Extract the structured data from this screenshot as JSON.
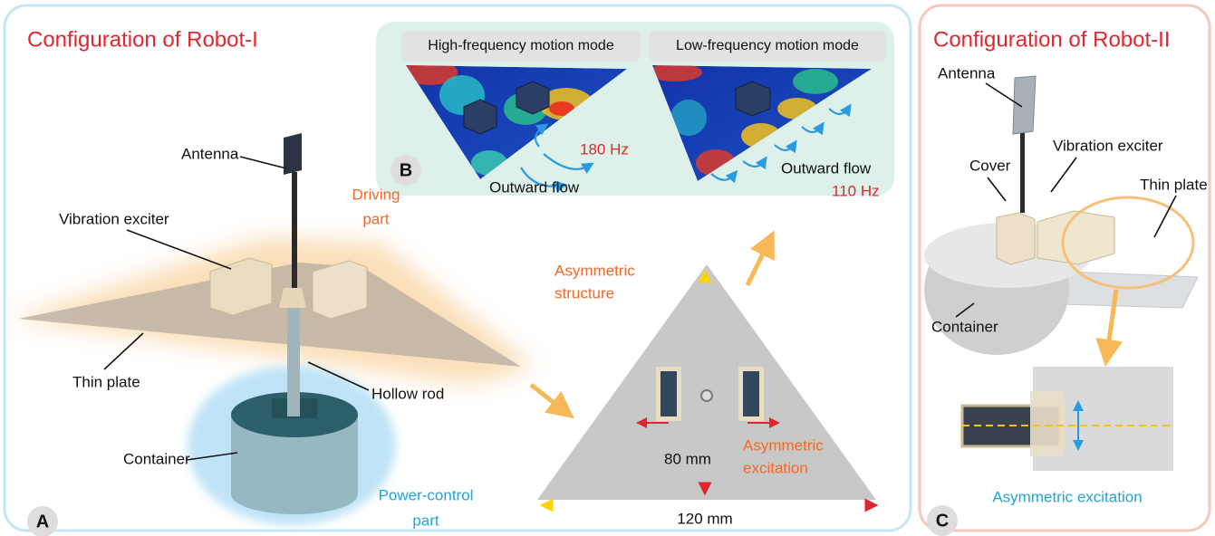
{
  "robot_1": {
    "title": "Configuration of Robot-I",
    "panel_label": "A",
    "antenna": "Antenna",
    "vibration_exciter": "Vibration exciter",
    "driving_part": [
      "Driving",
      "part"
    ],
    "thin_plate": "Thin plate",
    "hollow_rod": "Hollow rod",
    "container": "Container",
    "power_control_part": [
      "Power-control",
      "part"
    ]
  },
  "simulation": {
    "panel_label": "B",
    "high_frequency": {
      "mode": "High-frequency motion mode",
      "frequency": "180 Hz",
      "flow": "Outward flow"
    },
    "low_frequency": {
      "mode": "Low-frequency motion mode",
      "frequency": "110 Hz",
      "flow": "Outward flow"
    }
  },
  "top_view": {
    "structure": [
      "Asymmetric",
      "structure"
    ],
    "height": "80 mm",
    "excitation": [
      "Asymmetric",
      "excitation"
    ],
    "width": "120 mm"
  },
  "robot_2": {
    "title": "Configuration of Robot-II",
    "panel_label": "C",
    "antenna": "Antenna",
    "vibration_exciter": "Vibration exciter",
    "cover": "Cover",
    "thin_plate": "Thin plate",
    "container": "Container",
    "excitation": "Asymmetric excitation"
  }
}
